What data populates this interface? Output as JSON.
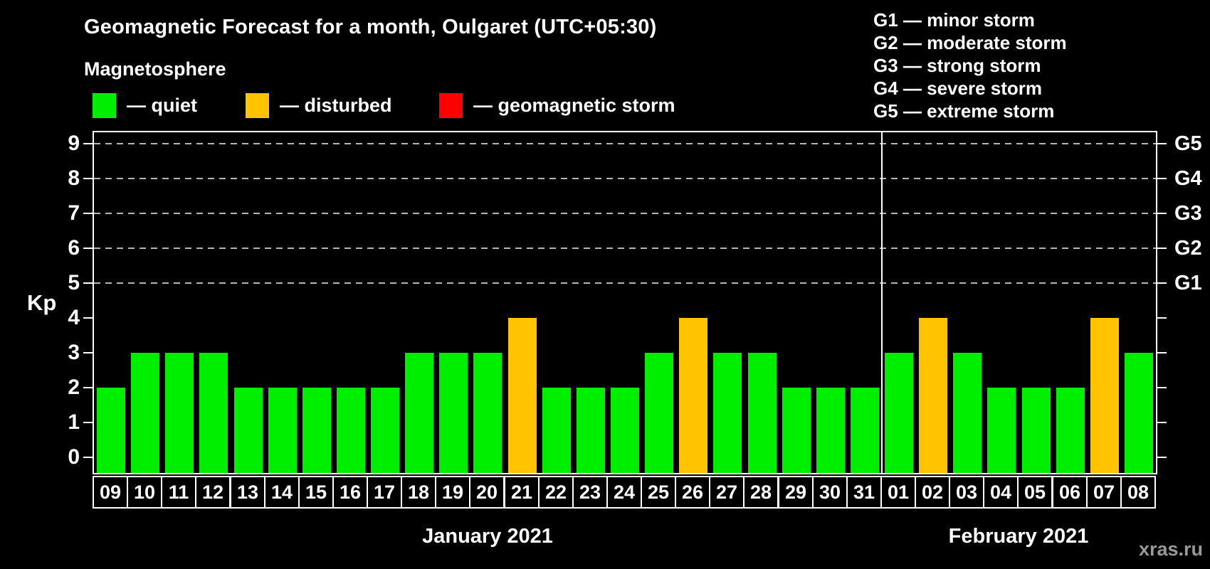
{
  "title": "Geomagnetic Forecast for a month, Oulgaret (UTC+05:30)",
  "legend": {
    "heading": "Magnetosphere",
    "items": [
      {
        "name": "quiet",
        "label": "— quiet",
        "color": "#00ef00"
      },
      {
        "name": "disturbed",
        "label": "— disturbed",
        "color": "#ffc300"
      },
      {
        "name": "storm",
        "label": "— geomagnetic storm",
        "color": "#ff0000"
      }
    ]
  },
  "g_scale": [
    {
      "code": "G1",
      "label": "G1 — minor storm",
      "kp": 5
    },
    {
      "code": "G2",
      "label": "G2 — moderate storm",
      "kp": 6
    },
    {
      "code": "G3",
      "label": "G3 — strong storm",
      "kp": 7
    },
    {
      "code": "G4",
      "label": "G4 — severe storm",
      "kp": 8
    },
    {
      "code": "G5",
      "label": "G5 — extreme storm",
      "kp": 9
    }
  ],
  "watermark": "xras.ru",
  "chart_data": {
    "type": "bar",
    "ylabel": "Kp",
    "ylim": [
      0,
      9
    ],
    "y_ticks": [
      0,
      1,
      2,
      3,
      4,
      5,
      6,
      7,
      8,
      9
    ],
    "gridlines": [
      5,
      6,
      7,
      8,
      9
    ],
    "grid_style": "dashed gray horizontal lines at storm levels only",
    "right_axis_labels": {
      "5": "G1",
      "6": "G2",
      "7": "G3",
      "8": "G4",
      "9": "G5"
    },
    "color_thresholds": {
      "disturbed_min_kp": 4,
      "storm_min_kp": 5
    },
    "months": [
      {
        "label": "January 2021",
        "days": [
          "09",
          "10",
          "11",
          "12",
          "13",
          "14",
          "15",
          "16",
          "17",
          "18",
          "19",
          "20",
          "21",
          "22",
          "23",
          "24",
          "25",
          "26",
          "27",
          "28",
          "29",
          "30",
          "31"
        ],
        "values": [
          2,
          3,
          3,
          3,
          2,
          2,
          2,
          2,
          2,
          3,
          3,
          3,
          4,
          2,
          2,
          2,
          3,
          4,
          3,
          3,
          2,
          2,
          2
        ]
      },
      {
        "label": "February 2021",
        "days": [
          "01",
          "02",
          "03",
          "04",
          "05",
          "06",
          "07",
          "08"
        ],
        "values": [
          3,
          4,
          3,
          2,
          2,
          2,
          4,
          3
        ]
      }
    ]
  }
}
